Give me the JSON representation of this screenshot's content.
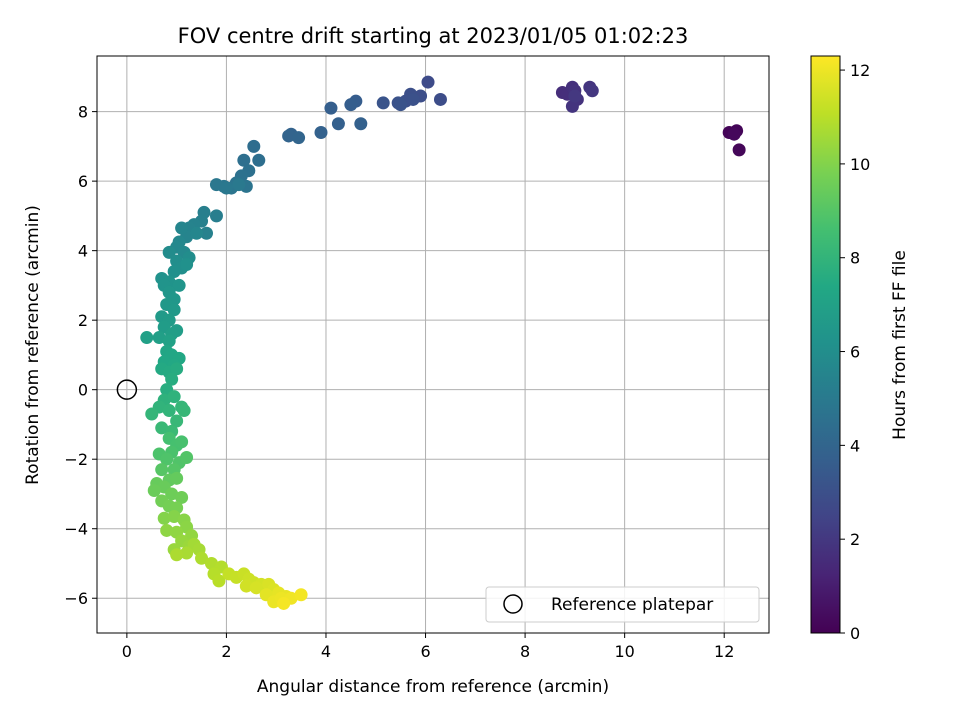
{
  "chart_data": {
    "type": "scatter",
    "title": "FOV centre drift starting at 2023/01/05 01:02:23",
    "xlabel": "Angular distance from reference (arcmin)",
    "ylabel": "Rotation from reference (arcmin)",
    "xlim": [
      -0.6,
      12.9
    ],
    "ylim": [
      -7.0,
      9.6
    ],
    "xticks": [
      0,
      2,
      4,
      6,
      8,
      10,
      12
    ],
    "yticks": [
      -6,
      -4,
      -2,
      0,
      2,
      4,
      6,
      8
    ],
    "grid": true,
    "legend": {
      "position": "lower-right",
      "entries": [
        "Reference platepar"
      ]
    },
    "reference": {
      "x": 0,
      "y": 0
    },
    "colorbar": {
      "label": "Hours from first FF file",
      "min": 0,
      "max": 12.3,
      "ticks": [
        0,
        2,
        4,
        6,
        8,
        10,
        12
      ],
      "colormap": "viridis"
    },
    "series": [
      {
        "color_by": "hours",
        "points": [
          [
            12.1,
            7.4,
            0.1
          ],
          [
            12.25,
            7.45,
            0.15
          ],
          [
            12.3,
            6.9,
            0.2
          ],
          [
            12.2,
            7.35,
            0.25
          ],
          [
            8.75,
            8.55,
            1.6
          ],
          [
            8.85,
            8.5,
            1.65
          ],
          [
            8.95,
            8.7,
            1.7
          ],
          [
            9.0,
            8.6,
            1.75
          ],
          [
            9.05,
            8.35,
            1.8
          ],
          [
            8.95,
            8.15,
            1.85
          ],
          [
            9.3,
            8.7,
            1.9
          ],
          [
            9.35,
            8.6,
            1.95
          ],
          [
            9.0,
            8.45,
            2.0
          ],
          [
            6.05,
            8.85,
            2.8
          ],
          [
            6.3,
            8.35,
            2.85
          ],
          [
            5.9,
            8.45,
            2.9
          ],
          [
            5.7,
            8.5,
            2.95
          ],
          [
            5.6,
            8.3,
            3.0
          ],
          [
            5.75,
            8.35,
            3.05
          ],
          [
            5.45,
            8.25,
            3.1
          ],
          [
            5.5,
            8.2,
            3.15
          ],
          [
            5.15,
            8.25,
            3.2
          ],
          [
            4.6,
            8.3,
            3.6
          ],
          [
            4.5,
            8.2,
            3.65
          ],
          [
            4.1,
            8.1,
            3.7
          ],
          [
            4.25,
            7.65,
            3.75
          ],
          [
            4.7,
            7.65,
            3.8
          ],
          [
            3.9,
            7.4,
            3.85
          ],
          [
            3.3,
            7.35,
            3.9
          ],
          [
            3.25,
            7.3,
            3.95
          ],
          [
            3.45,
            7.25,
            4.0
          ],
          [
            2.55,
            7.0,
            4.4
          ],
          [
            2.65,
            6.6,
            4.45
          ],
          [
            2.35,
            6.6,
            4.5
          ],
          [
            2.45,
            6.3,
            4.55
          ],
          [
            2.3,
            6.15,
            4.6
          ],
          [
            2.2,
            5.95,
            4.65
          ],
          [
            2.4,
            5.85,
            4.7
          ],
          [
            2.1,
            5.8,
            4.75
          ],
          [
            1.95,
            5.85,
            4.8
          ],
          [
            1.8,
            5.9,
            4.85
          ],
          [
            2.0,
            5.8,
            4.9
          ],
          [
            2.25,
            5.9,
            4.95
          ],
          [
            1.8,
            5.0,
            5.2
          ],
          [
            1.55,
            5.1,
            5.25
          ],
          [
            1.5,
            4.85,
            5.3
          ],
          [
            1.6,
            4.5,
            5.35
          ],
          [
            1.35,
            4.75,
            5.4
          ],
          [
            1.25,
            4.65,
            5.45
          ],
          [
            1.2,
            4.4,
            5.5
          ],
          [
            1.1,
            4.65,
            5.55
          ],
          [
            1.4,
            4.5,
            5.6
          ],
          [
            1.05,
            4.25,
            5.65
          ],
          [
            1.0,
            4.1,
            5.7
          ],
          [
            1.15,
            3.95,
            5.75
          ],
          [
            0.85,
            3.95,
            5.9
          ],
          [
            1.25,
            3.8,
            5.95
          ],
          [
            1.0,
            3.7,
            6.0
          ],
          [
            1.1,
            3.5,
            6.05
          ],
          [
            0.95,
            3.4,
            6.1
          ],
          [
            1.2,
            3.6,
            6.15
          ],
          [
            0.7,
            3.2,
            6.2
          ],
          [
            0.85,
            3.1,
            6.25
          ],
          [
            0.75,
            3.0,
            6.3
          ],
          [
            1.05,
            3.0,
            6.35
          ],
          [
            0.85,
            2.8,
            6.4
          ],
          [
            0.95,
            2.6,
            6.45
          ],
          [
            0.8,
            2.45,
            6.55
          ],
          [
            0.95,
            2.3,
            6.6
          ],
          [
            0.7,
            2.1,
            6.65
          ],
          [
            0.85,
            2.0,
            6.7
          ],
          [
            0.75,
            1.8,
            6.75
          ],
          [
            1.0,
            1.7,
            6.8
          ],
          [
            0.9,
            1.6,
            6.85
          ],
          [
            0.65,
            1.5,
            6.9
          ],
          [
            0.4,
            1.5,
            6.95
          ],
          [
            0.85,
            1.4,
            7.0
          ],
          [
            0.8,
            1.1,
            7.2
          ],
          [
            0.9,
            1.0,
            7.25
          ],
          [
            0.75,
            0.8,
            7.3
          ],
          [
            1.05,
            0.9,
            7.35
          ],
          [
            0.95,
            0.7,
            7.4
          ],
          [
            0.7,
            0.6,
            7.45
          ],
          [
            0.85,
            0.5,
            7.5
          ],
          [
            1.0,
            0.6,
            7.55
          ],
          [
            0.9,
            0.3,
            7.6
          ],
          [
            0.8,
            0.0,
            7.65
          ],
          [
            0.75,
            -0.3,
            7.85
          ],
          [
            0.95,
            -0.2,
            7.9
          ],
          [
            0.65,
            -0.5,
            7.95
          ],
          [
            0.85,
            -0.6,
            8.0
          ],
          [
            0.5,
            -0.7,
            8.05
          ],
          [
            1.1,
            -0.5,
            8.1
          ],
          [
            1.15,
            -0.6,
            8.15
          ],
          [
            1.0,
            -0.9,
            8.2
          ],
          [
            0.7,
            -1.1,
            8.25
          ],
          [
            0.9,
            -1.2,
            8.3
          ],
          [
            0.85,
            -1.4,
            8.6
          ],
          [
            1.0,
            -1.6,
            8.65
          ],
          [
            1.1,
            -1.5,
            8.7
          ],
          [
            0.9,
            -1.8,
            8.75
          ],
          [
            0.65,
            -1.85,
            8.8
          ],
          [
            0.8,
            -2.0,
            8.85
          ],
          [
            1.05,
            -2.1,
            8.9
          ],
          [
            1.2,
            -1.95,
            8.95
          ],
          [
            0.95,
            -2.3,
            9.0
          ],
          [
            0.7,
            -2.3,
            9.05
          ],
          [
            0.85,
            -2.6,
            9.3
          ],
          [
            1.0,
            -2.55,
            9.35
          ],
          [
            0.6,
            -2.7,
            9.4
          ],
          [
            0.75,
            -2.8,
            9.45
          ],
          [
            0.55,
            -2.9,
            9.5
          ],
          [
            0.9,
            -3.0,
            9.55
          ],
          [
            1.1,
            -3.1,
            9.6
          ],
          [
            0.7,
            -3.2,
            9.65
          ],
          [
            0.85,
            -3.35,
            9.7
          ],
          [
            1.0,
            -3.4,
            9.75
          ],
          [
            0.75,
            -3.7,
            10.0
          ],
          [
            0.95,
            -3.65,
            10.05
          ],
          [
            1.15,
            -3.75,
            10.1
          ],
          [
            1.2,
            -3.95,
            10.15
          ],
          [
            0.8,
            -4.05,
            10.2
          ],
          [
            1.0,
            -4.1,
            10.25
          ],
          [
            1.3,
            -4.2,
            10.3
          ],
          [
            1.1,
            -4.35,
            10.35
          ],
          [
            0.95,
            -4.6,
            10.4
          ],
          [
            1.25,
            -4.5,
            10.45
          ],
          [
            1.35,
            -4.45,
            10.6
          ],
          [
            1.45,
            -4.6,
            10.65
          ],
          [
            1.2,
            -4.7,
            10.7
          ],
          [
            1.0,
            -4.75,
            10.75
          ],
          [
            1.5,
            -4.85,
            10.8
          ],
          [
            1.7,
            -5.0,
            10.85
          ],
          [
            1.9,
            -5.1,
            10.9
          ],
          [
            1.75,
            -5.3,
            10.95
          ],
          [
            1.85,
            -5.5,
            11.0
          ],
          [
            2.05,
            -5.3,
            11.2
          ],
          [
            2.2,
            -5.4,
            11.25
          ],
          [
            2.35,
            -5.3,
            11.3
          ],
          [
            2.45,
            -5.45,
            11.35
          ],
          [
            2.55,
            -5.55,
            11.4
          ],
          [
            2.4,
            -5.65,
            11.45
          ],
          [
            2.7,
            -5.6,
            11.5
          ],
          [
            2.6,
            -5.7,
            11.55
          ],
          [
            2.85,
            -5.6,
            11.6
          ],
          [
            2.95,
            -5.75,
            11.65
          ],
          [
            2.8,
            -5.9,
            11.8
          ],
          [
            3.05,
            -5.85,
            11.85
          ],
          [
            3.2,
            -5.95,
            11.9
          ],
          [
            2.95,
            -6.1,
            11.95
          ],
          [
            3.1,
            -6.0,
            12.0
          ],
          [
            3.3,
            -6.0,
            12.05
          ],
          [
            3.5,
            -5.9,
            12.1
          ],
          [
            3.15,
            -6.15,
            12.15
          ]
        ]
      }
    ]
  }
}
